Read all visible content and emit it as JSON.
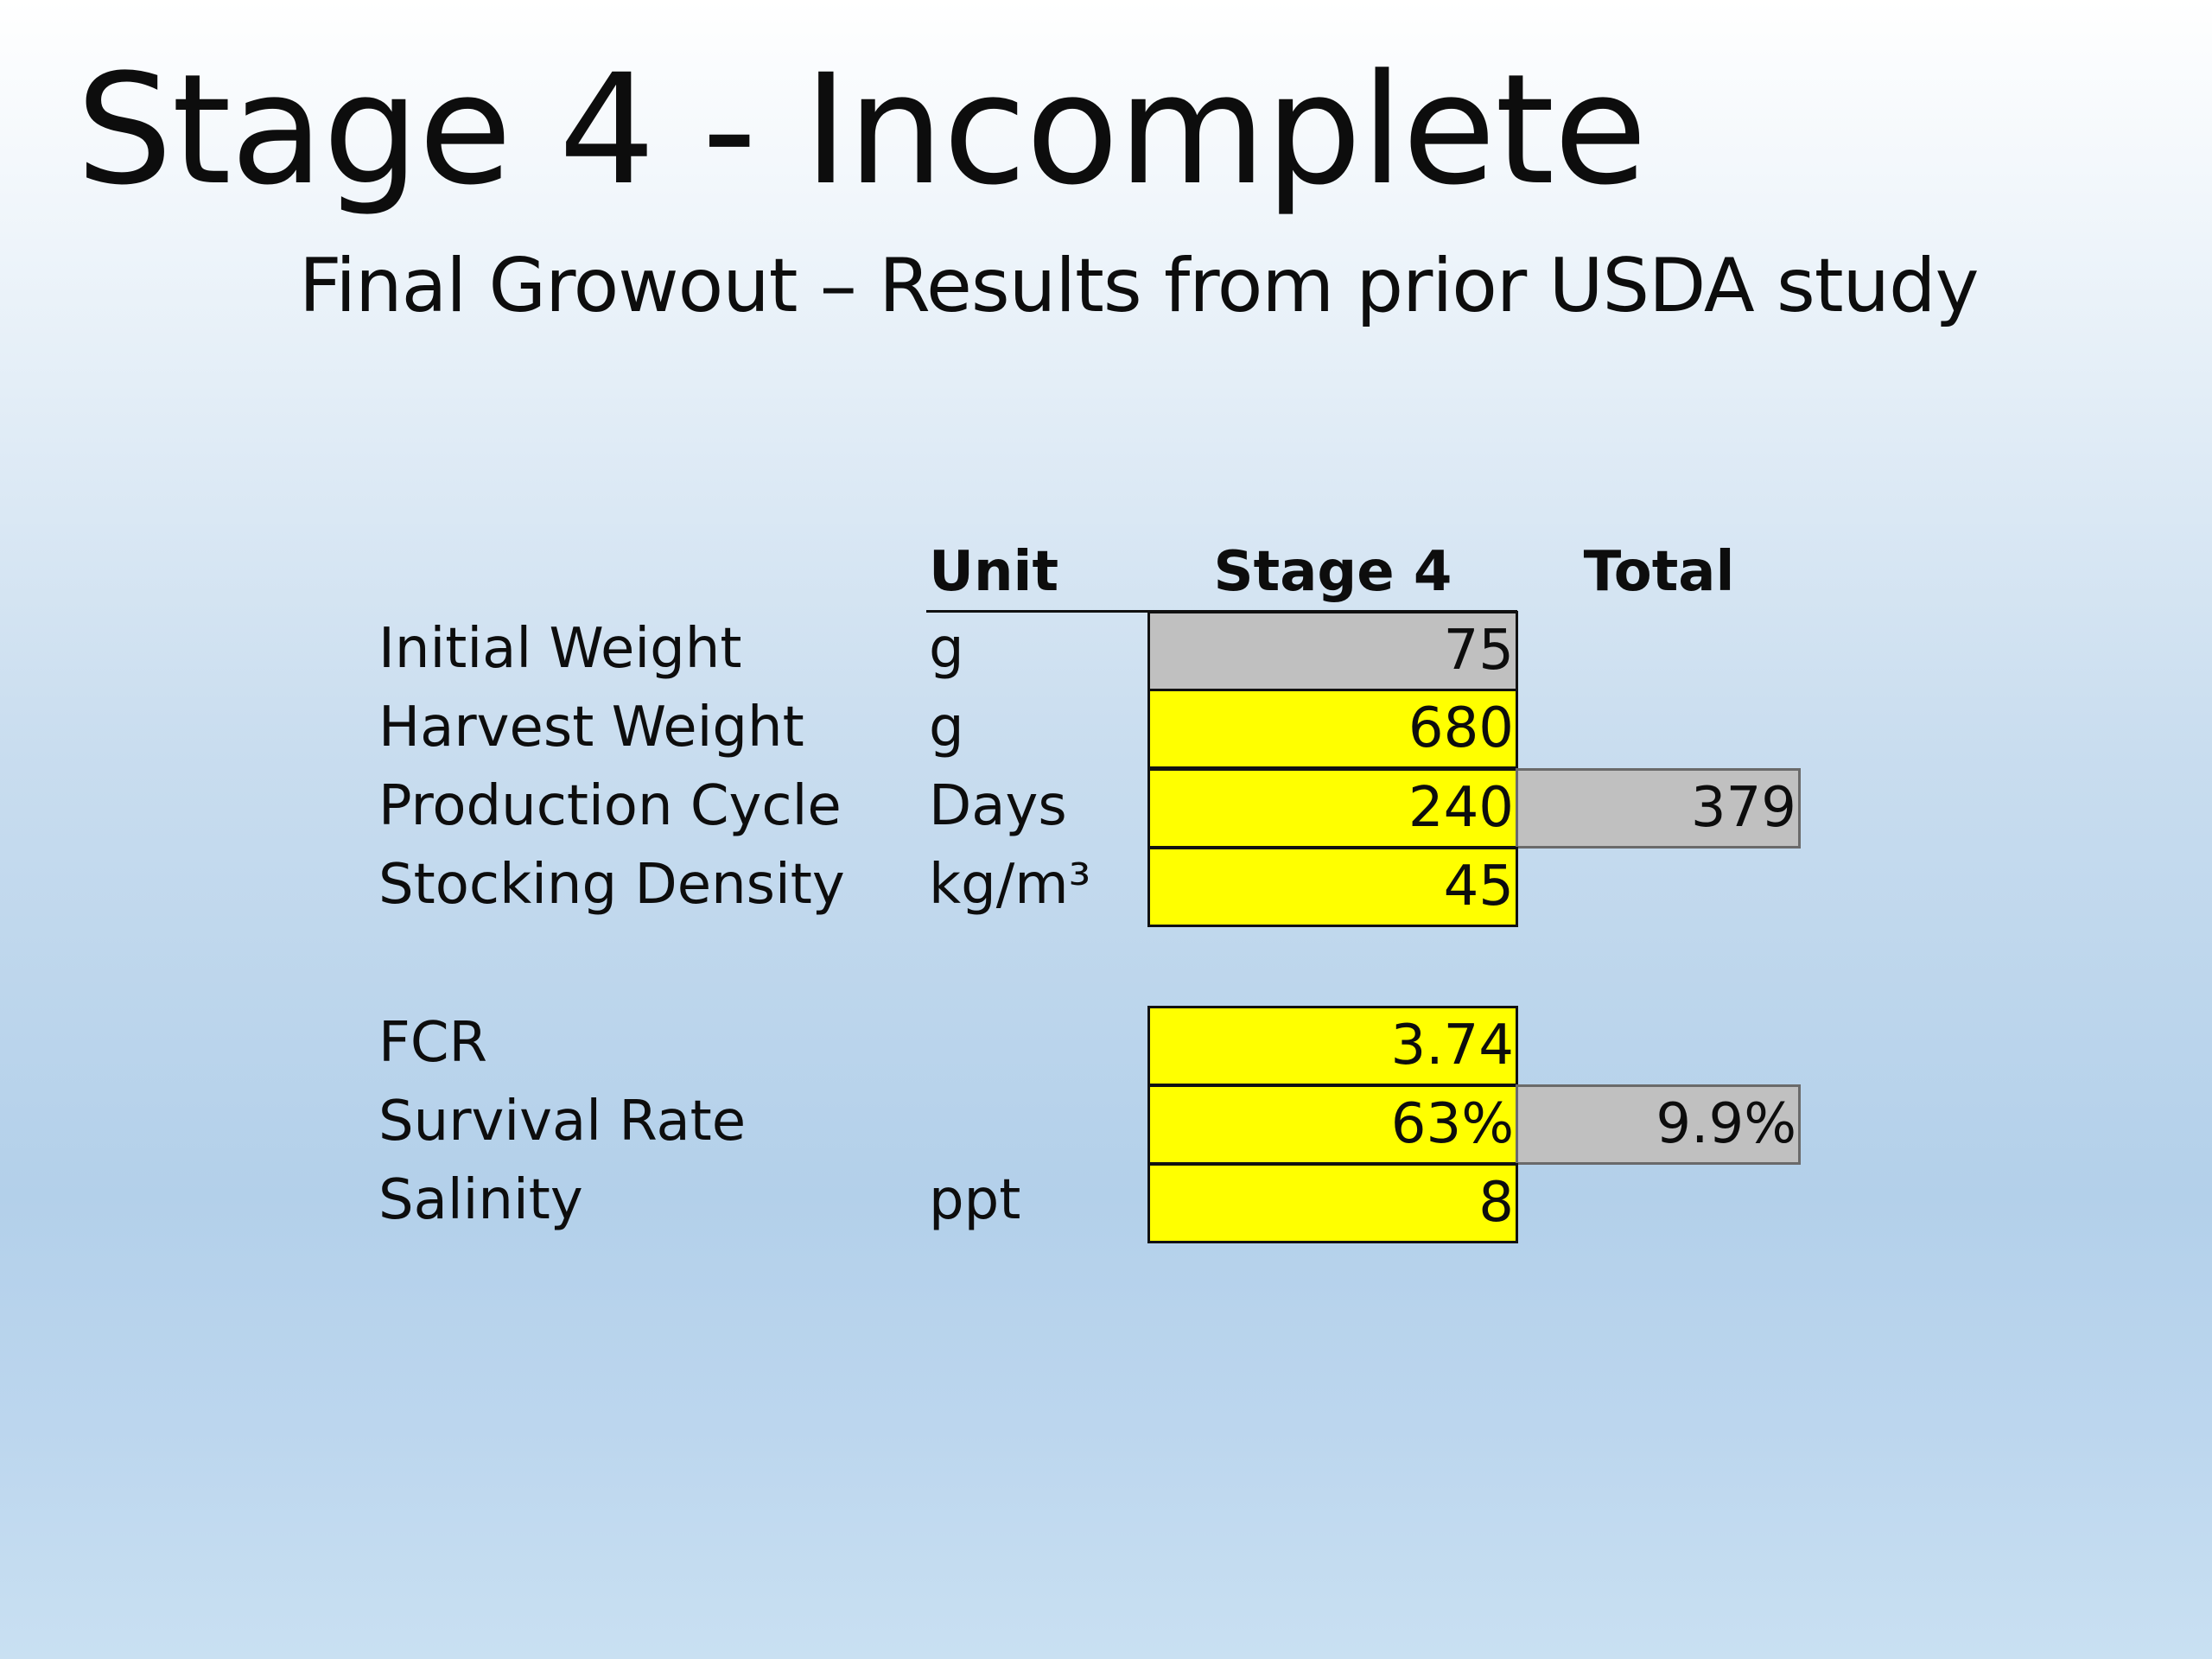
{
  "slide": {
    "title": "Stage 4 - Incomplete",
    "subtitle": "Final Growout – Results from prior USDA study"
  },
  "table": {
    "headers": {
      "unit": "Unit",
      "stage": "Stage 4",
      "total": "Total"
    },
    "rows": [
      {
        "label": "Initial Weight",
        "unit": "g",
        "stage": "75",
        "total": "",
        "stage_fill": "#c0c0c0"
      },
      {
        "label": "Harvest Weight",
        "unit": "g",
        "stage": "680",
        "total": "",
        "stage_fill": "#ffff00"
      },
      {
        "label": "Production Cycle",
        "unit": "Days",
        "stage": "240",
        "total": "379",
        "stage_fill": "#ffff00"
      },
      {
        "label": "Stocking Density",
        "unit": "kg/m³",
        "stage": "45",
        "total": "",
        "stage_fill": "#ffff00"
      },
      {
        "label": "FCR",
        "unit": "",
        "stage": "3.74",
        "total": "",
        "stage_fill": "#ffff00"
      },
      {
        "label": "Survival Rate",
        "unit": "",
        "stage": "63%",
        "total": "9.9%",
        "stage_fill": "#ffff00"
      },
      {
        "label": "Salinity",
        "unit": "ppt",
        "stage": "8",
        "total": "",
        "stage_fill": "#ffff00"
      }
    ]
  },
  "colors": {
    "input_cell": "#ffff00",
    "computed_cell": "#c0c0c0"
  }
}
